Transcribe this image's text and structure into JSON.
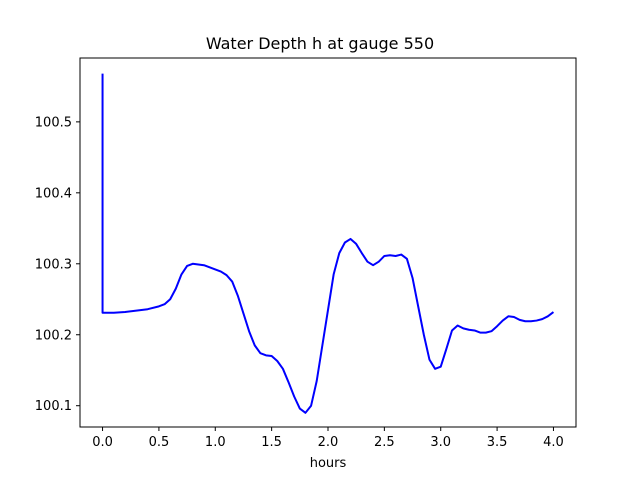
{
  "chart_data": {
    "type": "line",
    "title": "Water Depth h at gauge 550",
    "xlabel": "hours",
    "ylabel": "",
    "xlim": [
      -0.2,
      4.2
    ],
    "ylim": [
      100.07,
      100.59
    ],
    "x_ticks": [
      0.0,
      0.5,
      1.0,
      1.5,
      2.0,
      2.5,
      3.0,
      3.5,
      4.0
    ],
    "x_tick_labels": [
      "0.0",
      "0.5",
      "1.0",
      "1.5",
      "2.0",
      "2.5",
      "3.0",
      "3.5",
      "4.0"
    ],
    "y_ticks": [
      100.1,
      100.2,
      100.3,
      100.4,
      100.5
    ],
    "y_tick_labels": [
      "100.1",
      "100.2",
      "100.3",
      "100.4",
      "100.5"
    ],
    "grid": false,
    "series": [
      {
        "color": "#0000ff",
        "x": [
          0.0,
          0.0,
          0.1,
          0.2,
          0.3,
          0.4,
          0.5,
          0.55,
          0.6,
          0.65,
          0.7,
          0.75,
          0.8,
          0.9,
          1.0,
          1.05,
          1.1,
          1.15,
          1.2,
          1.25,
          1.3,
          1.35,
          1.4,
          1.45,
          1.5,
          1.55,
          1.6,
          1.65,
          1.7,
          1.75,
          1.8,
          1.85,
          1.9,
          1.95,
          2.0,
          2.05,
          2.1,
          2.15,
          2.2,
          2.25,
          2.3,
          2.35,
          2.4,
          2.45,
          2.5,
          2.55,
          2.6,
          2.65,
          2.7,
          2.75,
          2.8,
          2.85,
          2.9,
          2.95,
          3.0,
          3.05,
          3.1,
          3.15,
          3.2,
          3.25,
          3.3,
          3.35,
          3.4,
          3.45,
          3.5,
          3.55,
          3.6,
          3.65,
          3.7,
          3.75,
          3.8,
          3.85,
          3.9,
          3.95,
          4.0
        ],
        "y": [
          100.568,
          100.231,
          100.231,
          100.232,
          100.234,
          100.236,
          100.24,
          100.243,
          100.25,
          100.265,
          100.285,
          100.297,
          100.3,
          100.298,
          100.292,
          100.289,
          100.284,
          100.275,
          100.255,
          100.23,
          100.205,
          100.185,
          100.174,
          100.171,
          100.17,
          100.163,
          100.152,
          100.133,
          100.113,
          100.096,
          100.09,
          100.1,
          100.135,
          100.185,
          100.235,
          100.285,
          100.315,
          100.33,
          100.335,
          100.328,
          100.315,
          100.303,
          100.298,
          100.303,
          100.311,
          100.312,
          100.311,
          100.313,
          100.307,
          100.28,
          100.24,
          100.2,
          100.165,
          100.152,
          100.155,
          100.18,
          100.206,
          100.213,
          100.209,
          100.207,
          100.206,
          100.203,
          100.203,
          100.205,
          100.212,
          100.22,
          100.226,
          100.225,
          100.221,
          100.219,
          100.219,
          100.22,
          100.222,
          100.226,
          100.232
        ]
      }
    ]
  }
}
